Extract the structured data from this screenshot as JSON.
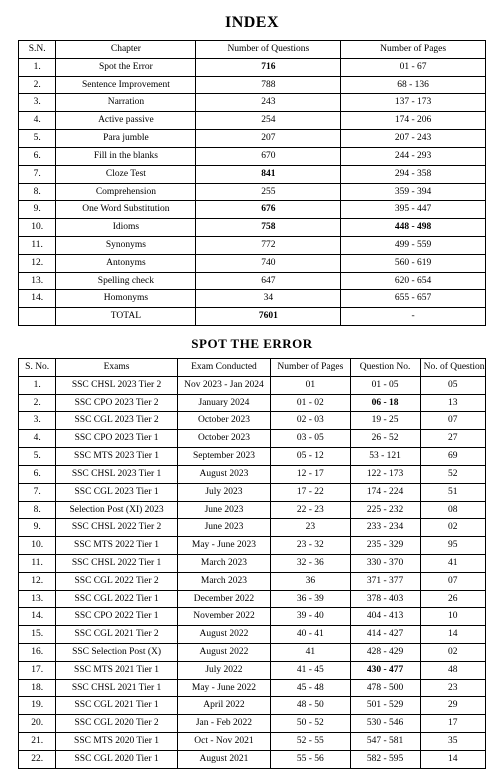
{
  "titles": {
    "index": "INDEX",
    "spot": "SPOT THE ERROR"
  },
  "indexTable": {
    "colWidths": [
      "8%",
      "30%",
      "31%",
      "31%"
    ],
    "headers": [
      "S.N.",
      "Chapter",
      "Number of Questions",
      "Number of Pages"
    ],
    "boldQuestionRows": [
      1,
      7,
      9,
      10
    ],
    "boldPagesRows": [
      10
    ],
    "rows": [
      [
        "1.",
        "Spot the Error",
        "716",
        "01 - 67"
      ],
      [
        "2.",
        "Sentence Improvement",
        "788",
        "68 - 136"
      ],
      [
        "3.",
        "Narration",
        "243",
        "137 - 173"
      ],
      [
        "4.",
        "Active passive",
        "254",
        "174 - 206"
      ],
      [
        "5.",
        "Para jumble",
        "207",
        "207 - 243"
      ],
      [
        "6.",
        "Fill in the blanks",
        "670",
        "244 - 293"
      ],
      [
        "7.",
        "Cloze Test",
        "841",
        "294 - 358"
      ],
      [
        "8.",
        "Comprehension",
        "255",
        "359 - 394"
      ],
      [
        "9.",
        "One Word Substitution",
        "676",
        "395 - 447"
      ],
      [
        "10.",
        "Idioms",
        "758",
        "448 - 498"
      ],
      [
        "11.",
        "Synonyms",
        "772",
        "499 - 559"
      ],
      [
        "12.",
        "Antonyms",
        "740",
        "560 - 619"
      ],
      [
        "13.",
        "Spelling check",
        "647",
        "620 - 654"
      ],
      [
        "14.",
        "Homonyms",
        "34",
        "655 - 657"
      ]
    ],
    "total": [
      "",
      "TOTAL",
      "7601",
      "-"
    ]
  },
  "spotTable": {
    "colWidths": [
      "8%",
      "26%",
      "20%",
      "17%",
      "15%",
      "14%"
    ],
    "headers": [
      "S. No.",
      "Exams",
      "Exam Conducted",
      "Number of Pages",
      "Question No.",
      "No. of Question"
    ],
    "boldQnRows": [
      2,
      17
    ],
    "rows": [
      [
        "1.",
        "SSC CHSL 2023 Tier 2",
        "Nov 2023 - Jan 2024",
        "01",
        "01 - 05",
        "05"
      ],
      [
        "2.",
        "SSC CPO 2023 Tier 2",
        "January 2024",
        "01 - 02",
        "06 - 18",
        "13"
      ],
      [
        "3.",
        "SSC CGL 2023 Tier 2",
        "October 2023",
        "02 - 03",
        "19 - 25",
        "07"
      ],
      [
        "4.",
        "SSC CPO 2023 Tier 1",
        "October 2023",
        "03 - 05",
        "26 - 52",
        "27"
      ],
      [
        "5.",
        "SSC MTS 2023 Tier 1",
        "September 2023",
        "05 - 12",
        "53 - 121",
        "69"
      ],
      [
        "6.",
        "SSC CHSL 2023 Tier 1",
        "August 2023",
        "12 - 17",
        "122 - 173",
        "52"
      ],
      [
        "7.",
        "SSC CGL 2023 Tier 1",
        "July 2023",
        "17 - 22",
        "174 - 224",
        "51"
      ],
      [
        "8.",
        "Selection Post (XI) 2023",
        "June 2023",
        "22 - 23",
        "225 - 232",
        "08"
      ],
      [
        "9.",
        "SSC CHSL 2022 Tier 2",
        "June 2023",
        "23",
        "233 - 234",
        "02"
      ],
      [
        "10.",
        "SSC MTS 2022 Tier 1",
        "May - June 2023",
        "23 - 32",
        "235 - 329",
        "95"
      ],
      [
        "11.",
        "SSC CHSL 2022 Tier 1",
        "March 2023",
        "32 - 36",
        "330 - 370",
        "41"
      ],
      [
        "12.",
        "SSC CGL 2022 Tier 2",
        "March 2023",
        "36",
        "371 - 377",
        "07"
      ],
      [
        "13.",
        "SSC CGL 2022 Tier 1",
        "December 2022",
        "36 - 39",
        "378 - 403",
        "26"
      ],
      [
        "14.",
        "SSC CPO 2022 Tier 1",
        "November 2022",
        "39 - 40",
        "404 - 413",
        "10"
      ],
      [
        "15.",
        "SSC CGL 2021 Tier 2",
        "August 2022",
        "40 - 41",
        "414 - 427",
        "14"
      ],
      [
        "16.",
        "SSC Selection Post (X)",
        "August 2022",
        "41",
        "428 - 429",
        "02"
      ],
      [
        "17.",
        "SSC MTS 2021 Tier 1",
        "July 2022",
        "41 - 45",
        "430 - 477",
        "48"
      ],
      [
        "18.",
        "SSC CHSL 2021 Tier 1",
        "May - June 2022",
        "45 - 48",
        "478 - 500",
        "23"
      ],
      [
        "19.",
        "SSC CGL 2021 Tier 1",
        "April 2022",
        "48 - 50",
        "501 - 529",
        "29"
      ],
      [
        "20.",
        "SSC CGL 2020 Tier 2",
        "Jan - Feb 2022",
        "50 - 52",
        "530 - 546",
        "17"
      ],
      [
        "21.",
        "SSC MTS 2020 Tier 1",
        "Oct - Nov 2021",
        "52 - 55",
        "547 - 581",
        "35"
      ],
      [
        "22.",
        "SSC CGL 2020 Tier 1",
        "August 2021",
        "55 - 56",
        "582 - 595",
        "14"
      ]
    ]
  }
}
